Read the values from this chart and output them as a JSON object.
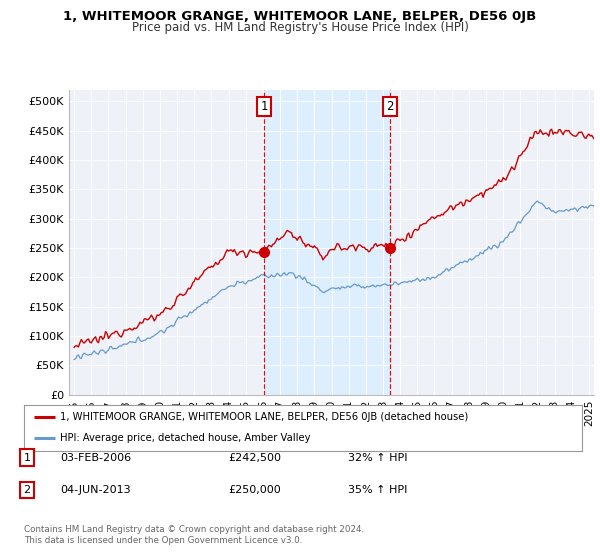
{
  "title": "1, WHITEMOOR GRANGE, WHITEMOOR LANE, BELPER, DE56 0JB",
  "subtitle": "Price paid vs. HM Land Registry's House Price Index (HPI)",
  "ylabel_ticks": [
    "£0",
    "£50K",
    "£100K",
    "£150K",
    "£200K",
    "£250K",
    "£300K",
    "£350K",
    "£400K",
    "£450K",
    "£500K"
  ],
  "ytick_vals": [
    0,
    50000,
    100000,
    150000,
    200000,
    250000,
    300000,
    350000,
    400000,
    450000,
    500000
  ],
  "ylim": [
    0,
    520000
  ],
  "xlim_start": 1994.7,
  "xlim_end": 2025.3,
  "red_line_color": "#cc0000",
  "blue_line_color": "#6699cc",
  "marker1_x": 2006.08,
  "marker1_y": 242500,
  "marker2_x": 2013.42,
  "marker2_y": 250000,
  "vline1_x": 2006.08,
  "vline2_x": 2013.42,
  "shade_color": "#ddeeff",
  "legend_label_red": "1, WHITEMOOR GRANGE, WHITEMOOR LANE, BELPER, DE56 0JB (detached house)",
  "legend_label_blue": "HPI: Average price, detached house, Amber Valley",
  "table_entries": [
    {
      "num": "1",
      "date": "03-FEB-2006",
      "price": "£242,500",
      "change": "32% ↑ HPI"
    },
    {
      "num": "2",
      "date": "04-JUN-2013",
      "price": "£250,000",
      "change": "35% ↑ HPI"
    }
  ],
  "footer": "Contains HM Land Registry data © Crown copyright and database right 2024.\nThis data is licensed under the Open Government Licence v3.0.",
  "background_color": "#ffffff",
  "plot_bg_color": "#eef2f8"
}
